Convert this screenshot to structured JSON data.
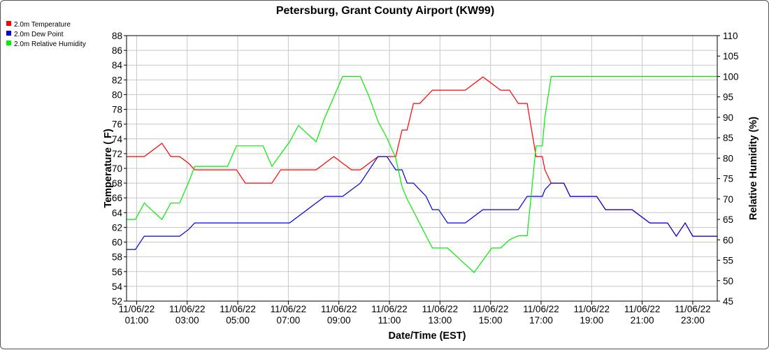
{
  "chart_data": {
    "type": "line",
    "title": "Petersburg, Grant County Airport (KW99)",
    "xlabel": "Date/Time (EST)",
    "ylabel": "Temperature ( F)",
    "y2label": "Relative Humidity (%)",
    "xlim": [
      0.6,
      23.97
    ],
    "ylim": [
      52,
      88
    ],
    "y2lim": [
      45,
      110
    ],
    "yticks": [
      52,
      54,
      56,
      58,
      60,
      62,
      64,
      66,
      68,
      70,
      72,
      74,
      76,
      78,
      80,
      82,
      84,
      86,
      88
    ],
    "y2ticks": [
      45,
      50,
      55,
      60,
      65,
      70,
      75,
      80,
      85,
      90,
      95,
      100,
      105,
      110
    ],
    "xticks": [
      {
        "x": 1,
        "date": "11/06/22",
        "time": "01:00"
      },
      {
        "x": 3,
        "date": "11/06/22",
        "time": "03:00"
      },
      {
        "x": 5,
        "date": "11/06/22",
        "time": "05:00"
      },
      {
        "x": 7,
        "date": "11/06/22",
        "time": "07:00"
      },
      {
        "x": 9,
        "date": "11/06/22",
        "time": "09:00"
      },
      {
        "x": 11,
        "date": "11/06/22",
        "time": "11:00"
      },
      {
        "x": 13,
        "date": "11/06/22",
        "time": "13:00"
      },
      {
        "x": 15,
        "date": "11/06/22",
        "time": "15:00"
      },
      {
        "x": 17,
        "date": "11/06/22",
        "time": "17:00"
      },
      {
        "x": 19,
        "date": "11/06/22",
        "time": "19:00"
      },
      {
        "x": 21,
        "date": "11/06/22",
        "time": "21:00"
      },
      {
        "x": 23,
        "date": "11/06/22",
        "time": "23:00"
      }
    ],
    "grid": true,
    "legend_position": "top-left",
    "series": [
      {
        "name": "2.0m Temperature",
        "axis": "left",
        "color": "#ff0000",
        "x": [
          0.6,
          0.95,
          1.3,
          1.65,
          2.0,
          2.35,
          2.7,
          3.05,
          3.3,
          3.55,
          3.9,
          4.25,
          4.6,
          4.95,
          5.3,
          5.65,
          6.0,
          6.35,
          6.7,
          7.05,
          7.4,
          7.75,
          8.1,
          8.45,
          8.8,
          9.15,
          9.5,
          9.85,
          10.2,
          10.55,
          10.9,
          11.25,
          11.5,
          11.7,
          11.95,
          12.2,
          12.45,
          12.7,
          12.95,
          13.3,
          13.65,
          14.0,
          14.35,
          14.7,
          15.05,
          15.4,
          15.75,
          16.1,
          16.45,
          16.8,
          17.05,
          17.15,
          17.4,
          17.65,
          17.9,
          18.15,
          18.5,
          18.85,
          19.2,
          19.55,
          19.9,
          20.25,
          20.6,
          20.95,
          21.3,
          21.65,
          22.0,
          22.35,
          22.7,
          23.0,
          23.2,
          23.5,
          23.97
        ],
        "values": [
          71.6,
          71.6,
          71.6,
          72.5,
          73.4,
          71.6,
          71.6,
          70.7,
          69.8,
          69.8,
          69.8,
          69.8,
          69.8,
          69.8,
          68.0,
          68.0,
          68.0,
          68.0,
          69.8,
          69.8,
          69.8,
          69.8,
          69.8,
          70.7,
          71.6,
          70.7,
          69.8,
          69.8,
          70.7,
          71.6,
          71.6,
          71.6,
          75.2,
          75.2,
          78.8,
          78.8,
          79.7,
          80.6,
          80.6,
          80.6,
          80.6,
          80.6,
          81.5,
          82.4,
          81.5,
          80.6,
          80.6,
          78.8,
          78.8,
          71.6,
          71.6,
          69.8,
          68.0,
          68.0,
          68.0,
          66.2,
          66.2,
          66.2,
          66.2,
          64.4,
          64.4,
          64.4,
          64.4,
          63.5,
          62.6,
          62.6,
          62.6,
          60.8,
          62.6,
          60.8,
          60.8,
          60.8,
          60.8
        ]
      },
      {
        "name": "2.0m Dew Point",
        "axis": "left",
        "color": "#0000dd",
        "x": [
          0.6,
          0.95,
          1.3,
          1.65,
          2.0,
          2.35,
          2.7,
          3.05,
          3.3,
          3.55,
          3.9,
          4.25,
          4.6,
          4.95,
          5.3,
          5.65,
          6.0,
          6.35,
          6.7,
          7.05,
          7.4,
          7.75,
          8.1,
          8.45,
          8.8,
          9.15,
          9.5,
          9.85,
          10.2,
          10.55,
          10.9,
          11.25,
          11.5,
          11.7,
          11.95,
          12.2,
          12.45,
          12.7,
          12.95,
          13.3,
          13.65,
          14.0,
          14.35,
          14.7,
          15.05,
          15.4,
          15.75,
          16.1,
          16.45,
          16.8,
          17.05,
          17.15,
          17.4,
          17.65,
          17.9,
          18.15,
          18.5,
          18.85,
          19.2,
          19.55,
          19.9,
          20.25,
          20.6,
          20.95,
          21.3,
          21.65,
          22.0,
          22.35,
          22.7,
          23.0,
          23.2,
          23.5,
          23.97
        ],
        "values": [
          59.0,
          59.0,
          60.8,
          60.8,
          60.8,
          60.8,
          60.8,
          61.7,
          62.6,
          62.6,
          62.6,
          62.6,
          62.6,
          62.6,
          62.6,
          62.6,
          62.6,
          62.6,
          62.6,
          62.6,
          63.5,
          64.4,
          65.3,
          66.2,
          66.2,
          66.2,
          67.1,
          68.0,
          69.8,
          71.6,
          71.6,
          69.8,
          69.8,
          68.0,
          68.0,
          67.1,
          66.2,
          64.4,
          64.4,
          62.6,
          62.6,
          62.6,
          63.5,
          64.4,
          64.4,
          64.4,
          64.4,
          64.4,
          66.2,
          66.2,
          66.2,
          67.1,
          68.0,
          68.0,
          68.0,
          66.2,
          66.2,
          66.2,
          66.2,
          64.4,
          64.4,
          64.4,
          64.4,
          63.5,
          62.6,
          62.6,
          62.6,
          60.8,
          62.6,
          60.8,
          60.8,
          60.8,
          60.8
        ]
      },
      {
        "name": "2.0m Relative Humidity",
        "axis": "right",
        "color": "#00ee00",
        "x": [
          0.6,
          0.95,
          1.3,
          1.65,
          2.0,
          2.35,
          2.7,
          3.05,
          3.3,
          3.55,
          3.9,
          4.25,
          4.6,
          4.95,
          5.3,
          5.65,
          6.0,
          6.35,
          6.7,
          7.05,
          7.4,
          7.75,
          8.1,
          8.45,
          8.8,
          9.15,
          9.5,
          9.85,
          10.2,
          10.55,
          10.9,
          11.25,
          11.5,
          11.7,
          11.95,
          12.2,
          12.45,
          12.7,
          12.95,
          13.3,
          13.65,
          14.0,
          14.35,
          14.7,
          15.05,
          15.4,
          15.75,
          16.1,
          16.45,
          16.8,
          17.05,
          17.15,
          17.4,
          17.65,
          17.9,
          18.15,
          18.5,
          18.85,
          19.2,
          19.55,
          19.9,
          20.25,
          20.6,
          20.95,
          21.3,
          21.65,
          22.0,
          22.35,
          22.7,
          23.0,
          23.2,
          23.5,
          23.97
        ],
        "values": [
          65,
          65,
          69,
          67,
          65,
          69,
          69,
          74,
          78,
          78,
          78,
          78,
          78,
          83,
          83,
          83,
          83,
          78,
          81,
          84,
          88,
          86,
          84,
          90,
          95,
          100,
          100,
          100,
          95,
          89,
          85,
          80,
          73,
          70,
          67,
          64,
          61,
          58,
          58,
          58,
          56,
          54,
          52,
          55,
          58,
          58,
          60,
          61,
          61,
          83,
          83,
          90,
          100,
          100,
          100,
          100,
          100,
          100,
          100,
          100,
          100,
          100,
          100,
          100,
          100,
          100,
          100,
          100,
          100,
          100,
          100,
          100,
          100
        ]
      }
    ]
  }
}
